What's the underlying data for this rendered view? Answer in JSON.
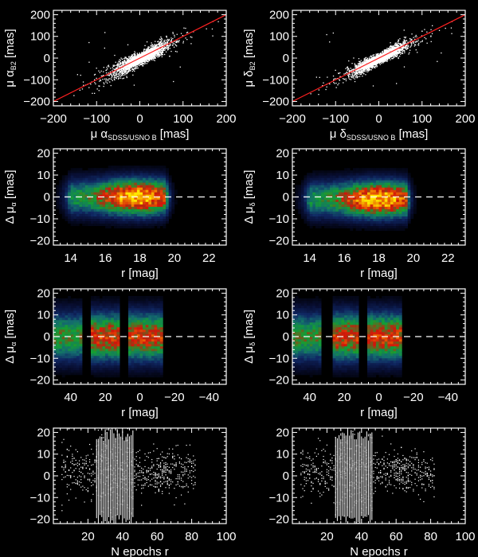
{
  "chart_data": [
    {
      "type": "scatter",
      "panel": "pm-alpha-comparison",
      "xlim": [
        -200,
        200
      ],
      "ylim": [
        -220,
        220
      ],
      "xticks": [
        -200,
        -100,
        0,
        100,
        200
      ],
      "yticks": [
        -200,
        -100,
        0,
        100,
        200
      ],
      "xlabel": {
        "pre": "μ α",
        "sub": "SDSS/USNO B",
        "post": " [mas]"
      },
      "ylabel": {
        "pre": "μ α",
        "sub": "B2",
        "post": " [mas]"
      },
      "fit_line": {
        "slope": 1,
        "intercept": 0,
        "color": "#ff2020"
      },
      "spread": 12
    },
    {
      "type": "scatter",
      "panel": "pm-delta-comparison",
      "xlim": [
        -200,
        200
      ],
      "ylim": [
        -220,
        220
      ],
      "xticks": [
        -200,
        -100,
        0,
        100,
        200
      ],
      "yticks": [
        -200,
        -100,
        0,
        100,
        200
      ],
      "xlabel": {
        "pre": "μ δ",
        "sub": "SDSS/USNO B",
        "post": " [mas]"
      },
      "ylabel": {
        "pre": "μ δ",
        "sub": "B2",
        "post": " [mas]"
      },
      "fit_line": {
        "slope": 1,
        "intercept": 0,
        "color": "#ff2020"
      },
      "spread": 10
    },
    {
      "type": "heatmap",
      "panel": "dmu-alpha-vs-r",
      "xlim": [
        13,
        23
      ],
      "ylim": [
        -22,
        22
      ],
      "xticks": [
        14,
        16,
        18,
        20,
        22
      ],
      "yticks": [
        -20,
        -10,
        0,
        10,
        20
      ],
      "xlabel": {
        "pre": "r [mag]",
        "sub": "",
        "post": ""
      },
      "ylabel": {
        "pre": "Δ μ",
        "sub": "α",
        "post": " [mas]"
      },
      "peak": {
        "x": 17.8,
        "y": 0
      },
      "x_range": [
        14,
        19.5
      ],
      "zero_line": 0
    },
    {
      "type": "heatmap",
      "panel": "dmu-delta-vs-r",
      "xlim": [
        13,
        23
      ],
      "ylim": [
        -22,
        22
      ],
      "xticks": [
        14,
        16,
        18,
        20,
        22
      ],
      "yticks": [
        -20,
        -10,
        0,
        10,
        20
      ],
      "xlabel": {
        "pre": "r [mag]",
        "sub": "",
        "post": ""
      },
      "ylabel": {
        "pre": "Δ μ",
        "sub": "δ",
        "post": " [mas]"
      },
      "peak": {
        "x": 18,
        "y": -1
      },
      "x_range": [
        14,
        19.6
      ],
      "zero_line": 0
    },
    {
      "type": "heatmap",
      "panel": "dmu-alpha-vs-r-reversed",
      "xlim": [
        50,
        -50
      ],
      "ylim": [
        -22,
        22
      ],
      "xticks": [
        40,
        20,
        0,
        -20,
        -40
      ],
      "yticks": [
        -20,
        -10,
        0,
        10,
        20
      ],
      "xlabel": {
        "pre": "r [mag]",
        "sub": "",
        "post": ""
      },
      "ylabel": {
        "pre": "Δ μ",
        "sub": "α",
        "post": " [mas]"
      },
      "bands": [
        [
          50,
          34
        ],
        [
          28,
          12
        ],
        [
          7,
          -14
        ]
      ],
      "zero_line": 0
    },
    {
      "type": "heatmap",
      "panel": "dmu-delta-vs-r-reversed",
      "xlim": [
        50,
        -50
      ],
      "ylim": [
        -22,
        22
      ],
      "xticks": [
        40,
        20,
        0,
        -20,
        -40
      ],
      "yticks": [
        -20,
        -10,
        0,
        10,
        20
      ],
      "xlabel": {
        "pre": "r [mag]",
        "sub": "",
        "post": ""
      },
      "ylabel": {
        "pre": "Δ μ",
        "sub": "δ",
        "post": " [mas]"
      },
      "bands": [
        [
          50,
          33
        ],
        [
          27,
          12
        ],
        [
          7,
          -14
        ]
      ],
      "zero_line": 0
    },
    {
      "type": "scatter",
      "panel": "residual-vs-epochs-alpha",
      "xlim": [
        0,
        100
      ],
      "ylim": [
        -22,
        22
      ],
      "xticks": [
        20,
        40,
        60,
        80,
        100
      ],
      "yticks": [
        -20,
        -10,
        0,
        10,
        20
      ],
      "xlabel": {
        "pre": "N epochs r",
        "sub": "",
        "post": ""
      },
      "ylabel": {
        "pre": "",
        "sub": "",
        "post": ""
      },
      "x_range": [
        5,
        82
      ],
      "dense_range": [
        25,
        46
      ]
    },
    {
      "type": "scatter",
      "panel": "residual-vs-epochs-delta",
      "xlim": [
        0,
        100
      ],
      "ylim": [
        -22,
        22
      ],
      "xticks": [
        20,
        40,
        60,
        80,
        100
      ],
      "yticks": [
        -20,
        -10,
        0,
        10,
        20
      ],
      "xlabel": {
        "pre": "N epochs r",
        "sub": "",
        "post": ""
      },
      "ylabel": {
        "pre": "",
        "sub": "",
        "post": ""
      },
      "x_range": [
        5,
        82
      ],
      "dense_range": [
        25,
        46
      ]
    }
  ]
}
